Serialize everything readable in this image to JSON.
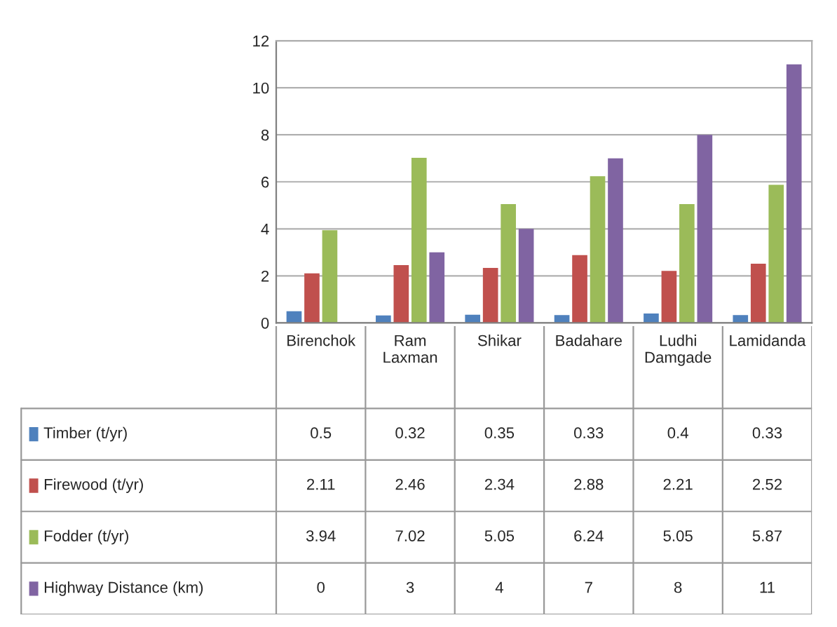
{
  "chart_data": {
    "type": "bar",
    "categories": [
      "Birenchok",
      "Ram Laxman",
      "Shikar",
      "Badahare",
      "Ludhi Damgade",
      "Lamidanda"
    ],
    "series": [
      {
        "name": "Timber (t/yr)",
        "color": "#4f81bd",
        "values": [
          0.5,
          0.32,
          0.35,
          0.33,
          0.4,
          0.33
        ]
      },
      {
        "name": "Firewood (t/yr)",
        "color": "#c0504d",
        "values": [
          2.11,
          2.46,
          2.34,
          2.88,
          2.21,
          2.52
        ]
      },
      {
        "name": "Fodder (t/yr)",
        "color": "#9bbb59",
        "values": [
          3.94,
          7.02,
          5.05,
          6.24,
          5.05,
          5.87
        ]
      },
      {
        "name": "Highway Distance (km)",
        "color": "#8064a2",
        "values": [
          0,
          3,
          4,
          7,
          8,
          11
        ]
      }
    ],
    "ylim": [
      0,
      12
    ],
    "yticks": [
      0,
      2,
      4,
      6,
      8,
      10,
      12
    ],
    "grid": "y",
    "legend": "bottom",
    "data_labels": true
  }
}
